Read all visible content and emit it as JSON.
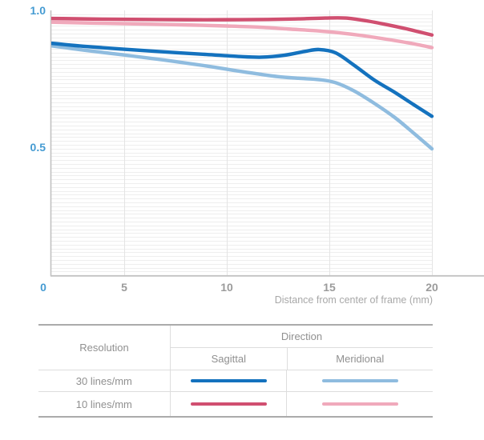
{
  "chart_data": {
    "type": "line",
    "title": "",
    "xlabel": "Distance from center of frame (mm)",
    "ylabel": "",
    "xlim": [
      0,
      20
    ],
    "ylim": [
      0,
      1.0
    ],
    "grid": "fine horizontal lines + vertical gridline every 5 mm",
    "legend_position": "table below chart",
    "x_ticks": [
      {
        "label": "0",
        "mm": 0,
        "accent": true
      },
      {
        "label": "5",
        "mm": 5,
        "accent": false
      },
      {
        "label": "10",
        "mm": 10,
        "accent": false
      },
      {
        "label": "15",
        "mm": 15,
        "accent": false
      },
      {
        "label": "20",
        "mm": 20,
        "accent": false
      }
    ],
    "y_ticks": [
      {
        "label": "1.0",
        "value": 1.0
      },
      {
        "label": "0.5",
        "value": 0.5
      }
    ],
    "series": [
      {
        "name": "10 lines/mm Meridional",
        "color": "#F0A9BB",
        "points": [
          [
            0,
            0.96
          ],
          [
            2,
            0.956
          ],
          [
            4,
            0.953
          ],
          [
            6,
            0.95
          ],
          [
            8,
            0.947
          ],
          [
            10,
            0.943
          ],
          [
            11.5,
            0.939
          ],
          [
            13,
            0.932
          ],
          [
            14.5,
            0.925
          ],
          [
            15.5,
            0.918
          ],
          [
            16.5,
            0.909
          ],
          [
            17.5,
            0.898
          ],
          [
            18.5,
            0.886
          ],
          [
            19.3,
            0.875
          ],
          [
            20,
            0.864
          ]
        ]
      },
      {
        "name": "10 lines/mm Sagittal",
        "color": "#D04F70",
        "points": [
          [
            0,
            0.972
          ],
          [
            2,
            0.97
          ],
          [
            4,
            0.968
          ],
          [
            6,
            0.967
          ],
          [
            8,
            0.966
          ],
          [
            10,
            0.966
          ],
          [
            12,
            0.967
          ],
          [
            13.5,
            0.969
          ],
          [
            14.8,
            0.972
          ],
          [
            15.8,
            0.972
          ],
          [
            16.8,
            0.962
          ],
          [
            17.8,
            0.948
          ],
          [
            18.8,
            0.932
          ],
          [
            19.4,
            0.921
          ],
          [
            20,
            0.91
          ]
        ]
      },
      {
        "name": "30 lines/mm Meridional",
        "color": "#8FBCDF",
        "points": [
          [
            0,
            0.881
          ],
          [
            1.4,
            0.871
          ],
          [
            3,
            0.855
          ],
          [
            5,
            0.837
          ],
          [
            7,
            0.818
          ],
          [
            9,
            0.797
          ],
          [
            10.5,
            0.779
          ],
          [
            11.5,
            0.768
          ],
          [
            12.5,
            0.758
          ],
          [
            13.5,
            0.752
          ],
          [
            14.5,
            0.747
          ],
          [
            15.3,
            0.736
          ],
          [
            16.2,
            0.706
          ],
          [
            17.2,
            0.66
          ],
          [
            18.2,
            0.608
          ],
          [
            19.1,
            0.552
          ],
          [
            20,
            0.494
          ]
        ]
      },
      {
        "name": "30 lines/mm Sagittal",
        "color": "#1472BE",
        "points": [
          [
            0,
            0.887
          ],
          [
            1.4,
            0.88
          ],
          [
            3,
            0.869
          ],
          [
            5,
            0.858
          ],
          [
            7,
            0.848
          ],
          [
            9,
            0.839
          ],
          [
            10.5,
            0.832
          ],
          [
            11.7,
            0.829
          ],
          [
            12.8,
            0.836
          ],
          [
            13.8,
            0.85
          ],
          [
            14.5,
            0.857
          ],
          [
            15.3,
            0.845
          ],
          [
            16.2,
            0.8
          ],
          [
            17.2,
            0.745
          ],
          [
            18.2,
            0.7
          ],
          [
            19.1,
            0.656
          ],
          [
            20,
            0.613
          ]
        ]
      }
    ]
  },
  "axis": {
    "xlabel": "Distance from center of frame (mm)"
  },
  "legend_table": {
    "resolution_header": "Resolution",
    "direction_header": "Direction",
    "columns": [
      "Sagittal",
      "Meridional"
    ],
    "rows": [
      {
        "resolution": "30 lines/mm",
        "cells": [
          {
            "direction": "Sagittal",
            "color": "#1472BE"
          },
          {
            "direction": "Meridional",
            "color": "#8FBCDF"
          }
        ]
      },
      {
        "resolution": "10 lines/mm",
        "cells": [
          {
            "direction": "Sagittal",
            "color": "#D04F70"
          },
          {
            "direction": "Meridional",
            "color": "#F0A9BB"
          }
        ]
      }
    ]
  },
  "colors": {
    "accent_tick": "#459BD2",
    "gray_tick": "#9B9B9B",
    "grid_h": "#EEEEEE",
    "grid_v": "#E4E4E4",
    "axis_line": "#C2C2C2",
    "table_border_dark": "#ABABAB",
    "table_border_light": "#DDDDDD"
  }
}
